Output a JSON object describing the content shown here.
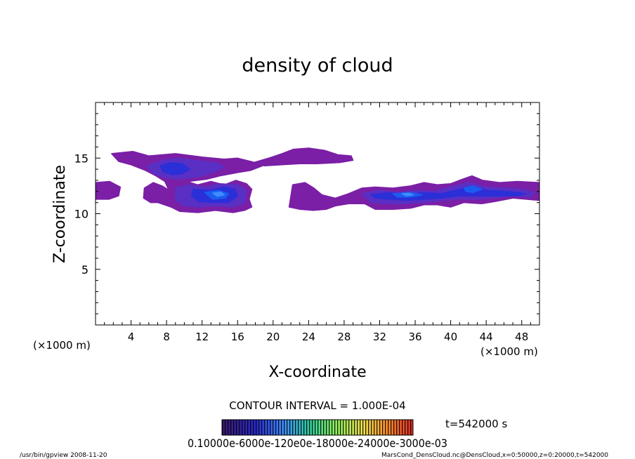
{
  "chart_data": {
    "type": "heatmap",
    "title": "density of cloud",
    "xlabel": "X-coordinate",
    "ylabel": "Z-coordinate",
    "x_unit_left": "(×1000 m)",
    "x_unit_right": "(×1000 m)",
    "xlim": [
      0,
      50
    ],
    "ylim": [
      0,
      20
    ],
    "xticks": [
      4,
      8,
      12,
      16,
      20,
      24,
      28,
      32,
      36,
      40,
      44,
      48
    ],
    "yticks": [
      5,
      10,
      15
    ],
    "contour_interval_text": "CONTOUR INTERVAL = 1.000E-04",
    "time_text": "t=542000 s",
    "colorbar_labels_text": "0.10000e-05e-04e-04e-03e-03e-03",
    "colorbar_labels_overlap": "0.10000e-6000e-120e0e-18000e-24000e-3000e-03",
    "colors": {
      "level1": "#7b1fa6",
      "level2": "#5a2fc4",
      "level3": "#2b2fd8",
      "level4": "#1b5cf0",
      "level5": "#3f8cff"
    },
    "regions": [
      {
        "level": 1,
        "polygon": [
          [
            1.8,
            15.4
          ],
          [
            4.2,
            15.6
          ],
          [
            6.0,
            15.2
          ],
          [
            9.0,
            15.4
          ],
          [
            12.0,
            15.1
          ],
          [
            14.5,
            14.9
          ],
          [
            16.0,
            15.0
          ],
          [
            18.0,
            14.6
          ],
          [
            18.8,
            14.3
          ],
          [
            17.5,
            13.9
          ],
          [
            16.0,
            13.7
          ],
          [
            14.0,
            13.4
          ],
          [
            12.5,
            13.1
          ],
          [
            10.5,
            12.9
          ],
          [
            9.5,
            12.4
          ],
          [
            8.2,
            12.2
          ],
          [
            7.8,
            12.9
          ],
          [
            6.8,
            13.4
          ],
          [
            5.6,
            13.9
          ],
          [
            4.0,
            14.4
          ],
          [
            2.6,
            14.7
          ]
        ]
      },
      {
        "level": 1,
        "polygon": [
          [
            17.8,
            14.6
          ],
          [
            19.5,
            15.0
          ],
          [
            21.0,
            15.4
          ],
          [
            22.3,
            15.8
          ],
          [
            24.0,
            15.9
          ],
          [
            25.8,
            15.7
          ],
          [
            27.3,
            15.3
          ],
          [
            28.8,
            15.2
          ],
          [
            29.0,
            14.8
          ],
          [
            27.5,
            14.6
          ],
          [
            25.0,
            14.5
          ],
          [
            23.0,
            14.5
          ],
          [
            21.0,
            14.4
          ],
          [
            19.0,
            14.3
          ]
        ]
      },
      {
        "level": 1,
        "polygon": [
          [
            5.5,
            12.3
          ],
          [
            6.5,
            12.8
          ],
          [
            7.5,
            12.5
          ],
          [
            8.3,
            12.1
          ],
          [
            9.0,
            12.6
          ],
          [
            10.3,
            12.9
          ],
          [
            11.5,
            12.6
          ],
          [
            13.0,
            12.9
          ],
          [
            14.5,
            12.6
          ],
          [
            15.8,
            13.0
          ],
          [
            17.0,
            12.7
          ],
          [
            17.6,
            12.2
          ],
          [
            17.3,
            11.3
          ],
          [
            17.6,
            10.6
          ],
          [
            16.8,
            10.3
          ],
          [
            15.5,
            10.1
          ],
          [
            13.5,
            10.3
          ],
          [
            11.5,
            10.1
          ],
          [
            9.5,
            10.2
          ],
          [
            8.5,
            10.6
          ],
          [
            7.0,
            11.0
          ],
          [
            6.2,
            11.0
          ],
          [
            5.4,
            11.4
          ]
        ]
      },
      {
        "level": 1,
        "polygon": [
          [
            0.0,
            12.8
          ],
          [
            1.6,
            12.9
          ],
          [
            2.8,
            12.4
          ],
          [
            2.6,
            11.6
          ],
          [
            1.5,
            11.3
          ],
          [
            0.0,
            11.3
          ]
        ]
      },
      {
        "level": 1,
        "polygon": [
          [
            21.8,
            10.6
          ],
          [
            22.2,
            12.6
          ],
          [
            23.6,
            12.8
          ],
          [
            24.6,
            12.3
          ],
          [
            25.5,
            11.7
          ],
          [
            27.0,
            11.4
          ],
          [
            28.5,
            11.8
          ],
          [
            30.0,
            12.3
          ],
          [
            31.5,
            12.4
          ],
          [
            33.5,
            12.3
          ],
          [
            35.5,
            12.5
          ],
          [
            37.0,
            12.8
          ],
          [
            38.5,
            12.6
          ],
          [
            40.0,
            12.7
          ],
          [
            41.3,
            13.1
          ],
          [
            42.4,
            13.4
          ],
          [
            43.6,
            13.0
          ],
          [
            45.5,
            12.8
          ],
          [
            47.5,
            12.9
          ],
          [
            50.0,
            12.8
          ],
          [
            50.0,
            11.2
          ],
          [
            48.5,
            11.3
          ],
          [
            47.0,
            11.4
          ],
          [
            45.0,
            11.1
          ],
          [
            43.5,
            10.9
          ],
          [
            41.5,
            11.0
          ],
          [
            40.0,
            10.6
          ],
          [
            38.5,
            10.8
          ],
          [
            37.0,
            10.8
          ],
          [
            35.5,
            10.5
          ],
          [
            33.5,
            10.4
          ],
          [
            31.5,
            10.4
          ],
          [
            30.3,
            10.9
          ],
          [
            28.5,
            10.9
          ],
          [
            27.0,
            10.7
          ],
          [
            26.0,
            10.4
          ],
          [
            24.5,
            10.3
          ],
          [
            23.0,
            10.4
          ]
        ]
      },
      {
        "level": 2,
        "polygon": [
          [
            5.8,
            14.3
          ],
          [
            7.5,
            14.8
          ],
          [
            9.3,
            15.0
          ],
          [
            11.0,
            14.8
          ],
          [
            13.5,
            14.6
          ],
          [
            14.5,
            14.2
          ],
          [
            13.5,
            13.8
          ],
          [
            12.0,
            13.4
          ],
          [
            10.5,
            13.2
          ],
          [
            9.0,
            13.1
          ],
          [
            7.6,
            13.3
          ],
          [
            6.5,
            13.6
          ]
        ]
      },
      {
        "level": 2,
        "polygon": [
          [
            9.0,
            12.3
          ],
          [
            10.5,
            12.6
          ],
          [
            12.5,
            12.4
          ],
          [
            14.0,
            12.7
          ],
          [
            16.0,
            12.6
          ],
          [
            17.0,
            12.1
          ],
          [
            16.8,
            11.0
          ],
          [
            15.5,
            10.6
          ],
          [
            13.5,
            10.7
          ],
          [
            11.5,
            10.6
          ],
          [
            10.0,
            10.7
          ],
          [
            9.0,
            11.2
          ]
        ]
      },
      {
        "level": 2,
        "polygon": [
          [
            30.0,
            11.8
          ],
          [
            32.0,
            12.1
          ],
          [
            34.0,
            11.9
          ],
          [
            36.0,
            12.1
          ],
          [
            38.0,
            12.0
          ],
          [
            40.0,
            12.4
          ],
          [
            42.0,
            12.8
          ],
          [
            44.0,
            12.4
          ],
          [
            46.0,
            12.3
          ],
          [
            48.0,
            12.2
          ],
          [
            49.5,
            11.9
          ],
          [
            49.0,
            11.5
          ],
          [
            47.0,
            11.6
          ],
          [
            45.0,
            11.4
          ],
          [
            43.0,
            11.3
          ],
          [
            41.0,
            11.3
          ],
          [
            39.0,
            11.2
          ],
          [
            37.0,
            11.0
          ],
          [
            35.0,
            10.9
          ],
          [
            33.0,
            10.9
          ],
          [
            31.0,
            11.0
          ]
        ]
      },
      {
        "level": 3,
        "polygon": [
          [
            7.3,
            14.3
          ],
          [
            8.5,
            14.6
          ],
          [
            9.8,
            14.5
          ],
          [
            10.6,
            14.0
          ],
          [
            9.8,
            13.6
          ],
          [
            8.6,
            13.5
          ],
          [
            7.6,
            13.8
          ]
        ]
      },
      {
        "level": 3,
        "polygon": [
          [
            11.0,
            12.2
          ],
          [
            12.8,
            12.1
          ],
          [
            14.5,
            12.4
          ],
          [
            15.7,
            12.2
          ],
          [
            16.0,
            11.6
          ],
          [
            15.0,
            11.0
          ],
          [
            13.2,
            11.0
          ],
          [
            11.6,
            11.1
          ],
          [
            10.8,
            11.6
          ]
        ]
      },
      {
        "level": 3,
        "polygon": [
          [
            31.0,
            11.7
          ],
          [
            33.0,
            11.9
          ],
          [
            35.0,
            11.7
          ],
          [
            37.0,
            11.9
          ],
          [
            39.0,
            11.8
          ],
          [
            41.0,
            12.2
          ],
          [
            42.5,
            12.5
          ],
          [
            44.0,
            12.1
          ],
          [
            46.5,
            12.0
          ],
          [
            48.5,
            11.8
          ],
          [
            47.5,
            11.6
          ],
          [
            45.0,
            11.6
          ],
          [
            43.0,
            11.6
          ],
          [
            41.0,
            11.6
          ],
          [
            39.0,
            11.4
          ],
          [
            37.0,
            11.3
          ],
          [
            35.0,
            11.2
          ],
          [
            33.0,
            11.3
          ],
          [
            31.5,
            11.4
          ]
        ]
      },
      {
        "level": 4,
        "polygon": [
          [
            12.3,
            11.9
          ],
          [
            13.8,
            12.1
          ],
          [
            15.0,
            11.8
          ],
          [
            14.6,
            11.4
          ],
          [
            13.2,
            11.3
          ]
        ]
      },
      {
        "level": 4,
        "polygon": [
          [
            33.5,
            11.8
          ],
          [
            35.5,
            11.9
          ],
          [
            36.8,
            11.7
          ],
          [
            35.5,
            11.5
          ],
          [
            34.0,
            11.5
          ]
        ]
      },
      {
        "level": 4,
        "polygon": [
          [
            41.5,
            12.3
          ],
          [
            42.5,
            12.5
          ],
          [
            43.5,
            12.2
          ],
          [
            42.5,
            11.9
          ],
          [
            41.7,
            12.0
          ]
        ]
      },
      {
        "level": 5,
        "polygon": [
          [
            13.2,
            11.85
          ],
          [
            14.1,
            11.95
          ],
          [
            14.5,
            11.7
          ],
          [
            13.7,
            11.55
          ]
        ]
      },
      {
        "level": 5,
        "polygon": [
          [
            34.5,
            11.8
          ],
          [
            35.3,
            11.85
          ],
          [
            35.8,
            11.7
          ],
          [
            35.0,
            11.6
          ]
        ]
      }
    ]
  },
  "footer": {
    "left": "/usr/bin/gpview  2008-11-20",
    "right": "MarsCond_DensCloud.nc@DensCloud,x=0:50000,z=0:20000,t=542000"
  }
}
